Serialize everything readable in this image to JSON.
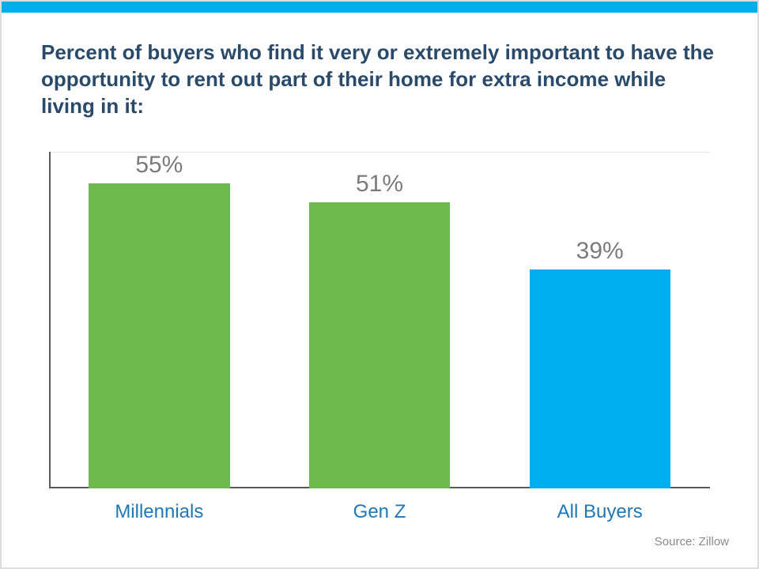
{
  "chart": {
    "type": "bar",
    "title": "Percent of buyers who find it very or extremely important to have the opportunity to rent out part of their home for extra income while living in it:",
    "title_color": "#2a4a6a",
    "title_fontsize": 26,
    "categories": [
      "Millennials",
      "Gen Z",
      "All Buyers"
    ],
    "values": [
      55,
      51,
      39
    ],
    "value_labels": [
      "55%",
      "51%",
      "39%"
    ],
    "bar_colors": [
      "#6cbb4a",
      "#6cbb4a",
      "#00aeef"
    ],
    "value_label_color": "#7b7b7b",
    "value_label_fontsize": 30,
    "xlabel_color": "#1f77b4",
    "xlabel_fontsize": 24,
    "ylim": [
      0,
      60
    ],
    "gridlines_y": [
      60
    ],
    "grid_color": "#e6e6e6",
    "axis_color": "#5a5a5a",
    "background_color": "#ffffff",
    "border_color": "#dddddd",
    "topbar_color": "#00aeef",
    "topbar_height": 14,
    "bar_width_pct": 64,
    "source_text": "Source: Zillow",
    "source_color": "#8a8a8a",
    "source_fontsize": 15
  }
}
